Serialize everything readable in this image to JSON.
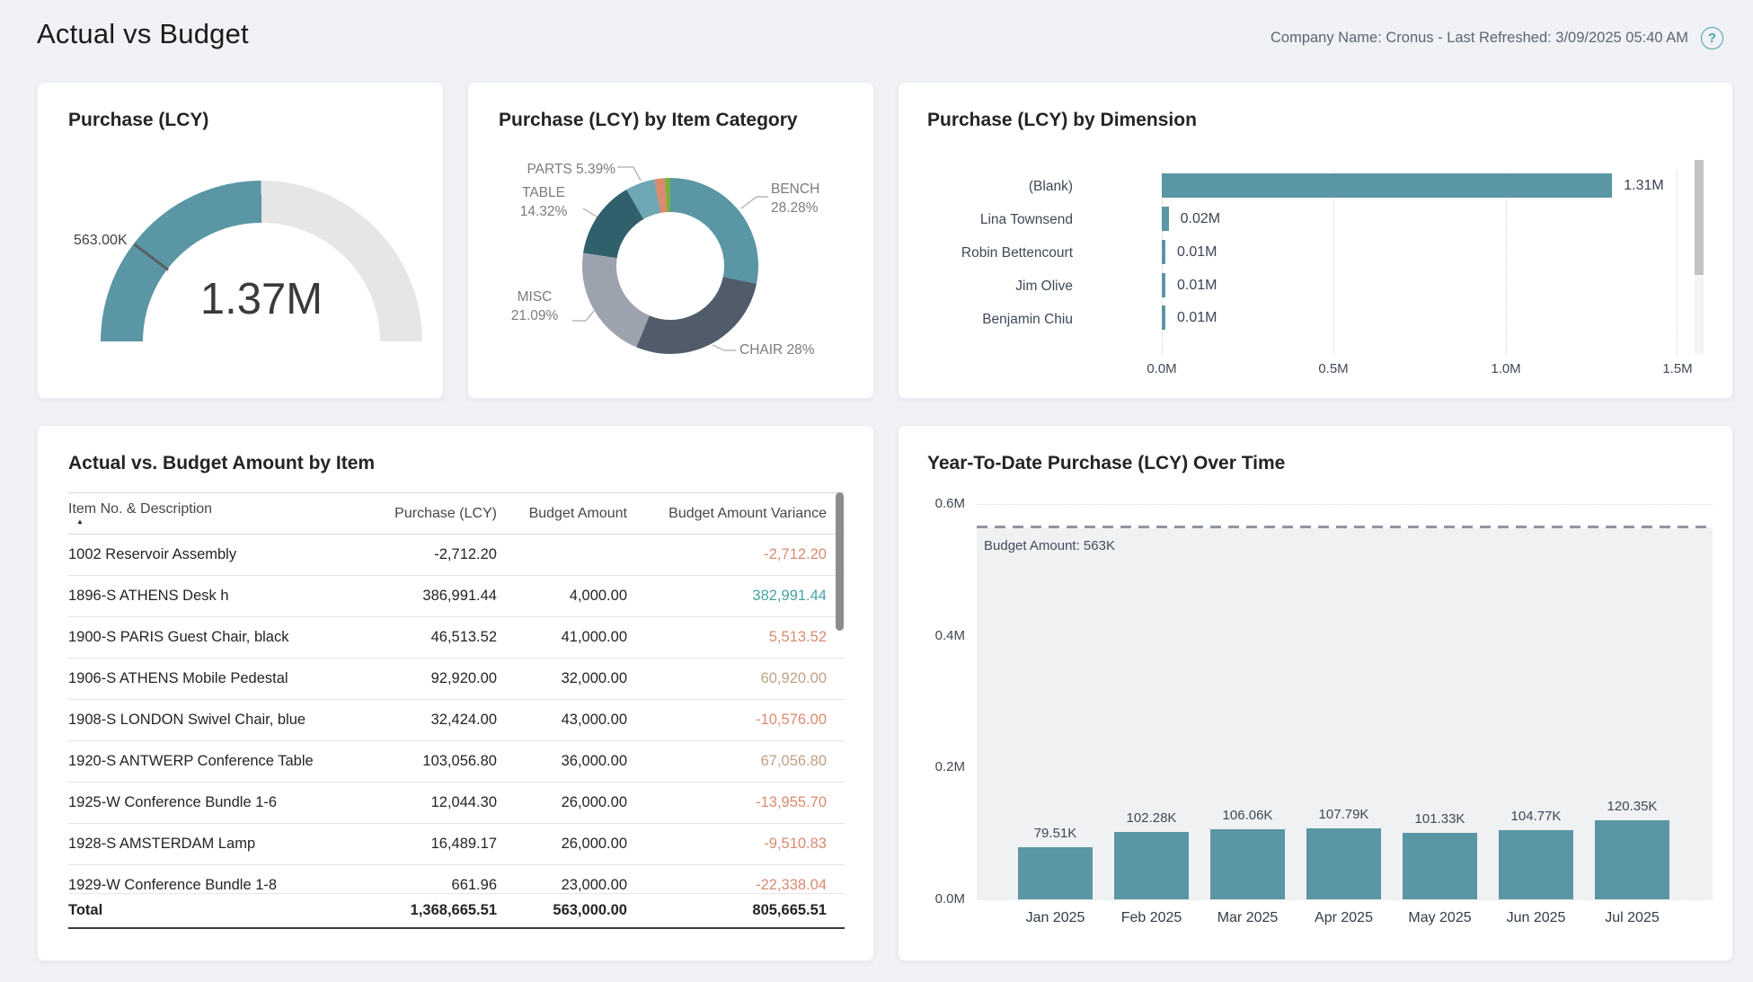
{
  "header": {
    "title": "Actual vs Budget",
    "company_info": "Company Name: Cronus - Last Refreshed: 3/09/2025 05:40 AM",
    "help_icon_glyph": "?"
  },
  "colors": {
    "teal": "#5A96A4",
    "gauge_track": "#E6E6E6",
    "salmon": "#D98B70",
    "tan": "#BFA183",
    "variance_teal": "#47A3A2",
    "page_bg": "#F0F2F6"
  },
  "chart_data": [
    {
      "type": "gauge",
      "title": "Purchase (LCY)",
      "value": 1368665.51,
      "value_label": "1.37M",
      "min": 0,
      "max": 2740000,
      "target": 563000,
      "target_label": "563.00K",
      "fill_color": "#5A96A4",
      "track_color": "#E6E6E6"
    },
    {
      "type": "pie",
      "title": "Purchase (LCY) by Item Category",
      "slices": [
        {
          "label": "BENCH",
          "pct": 28.28,
          "color": "#5A96A4",
          "callout1": "BENCH",
          "callout2": "28.28%"
        },
        {
          "label": "CHAIR",
          "pct": 28.0,
          "color": "#515C6B",
          "callout1": "CHAIR 28%"
        },
        {
          "label": "MISC",
          "pct": 21.09,
          "color": "#9DA3AE",
          "callout1": "MISC",
          "callout2": "21.09%"
        },
        {
          "label": "TABLE",
          "pct": 14.32,
          "color": "#2F606C",
          "callout1": "TABLE",
          "callout2": "14.32%"
        },
        {
          "label": "PARTS",
          "pct": 5.39,
          "color": "#6FA8B4",
          "callout1": "PARTS 5.39%"
        },
        {
          "label": "",
          "pct": 2.0,
          "color": "#D98B70"
        },
        {
          "label": "",
          "pct": 0.92,
          "color": "#76B041"
        }
      ]
    },
    {
      "type": "bar",
      "orientation": "horizontal",
      "title": "Purchase (LCY) by Dimension",
      "categories": [
        "(Blank)",
        "Lina Townsend",
        "Robin Bettencourt",
        "Jim Olive",
        "Benjamin Chiu"
      ],
      "values": [
        1310000,
        20000,
        10000,
        10000,
        10000
      ],
      "value_labels": [
        "1.31M",
        "0.02M",
        "0.01M",
        "0.01M",
        "0.01M"
      ],
      "x_ticks": [
        "0.0M",
        "0.5M",
        "1.0M",
        "1.5M"
      ],
      "xlim": [
        0,
        1500000
      ],
      "bar_color": "#5A96A4",
      "grid": "dotted-vertical"
    },
    {
      "type": "table",
      "title": "Actual vs. Budget Amount by Item",
      "columns": [
        "Item No. & Description",
        "Purchase (LCY)",
        "Budget Amount",
        "Budget Amount Variance"
      ],
      "sort": {
        "column": "Item No. & Description",
        "direction": "ascending"
      },
      "rows": [
        {
          "desc": "1002 Reservoir Assembly",
          "purchase": "-2,712.20",
          "budget": "",
          "variance": "-2,712.20",
          "variance_color": "#D98B70"
        },
        {
          "desc": "1896-S ATHENS Desk h",
          "purchase": "386,991.44",
          "budget": "4,000.00",
          "variance": "382,991.44",
          "variance_color": "#47A3A2"
        },
        {
          "desc": "1900-S PARIS Guest Chair, black",
          "purchase": "46,513.52",
          "budget": "41,000.00",
          "variance": "5,513.52",
          "variance_color": "#D98B70"
        },
        {
          "desc": "1906-S ATHENS Mobile Pedestal",
          "purchase": "92,920.00",
          "budget": "32,000.00",
          "variance": "60,920.00",
          "variance_color": "#BFA183"
        },
        {
          "desc": "1908-S LONDON Swivel Chair, blue",
          "purchase": "32,424.00",
          "budget": "43,000.00",
          "variance": "-10,576.00",
          "variance_color": "#D98B70"
        },
        {
          "desc": "1920-S ANTWERP Conference Table",
          "purchase": "103,056.80",
          "budget": "36,000.00",
          "variance": "67,056.80",
          "variance_color": "#BFA183"
        },
        {
          "desc": "1925-W Conference Bundle 1-6",
          "purchase": "12,044.30",
          "budget": "26,000.00",
          "variance": "-13,955.70",
          "variance_color": "#D98B70"
        },
        {
          "desc": "1928-S AMSTERDAM Lamp",
          "purchase": "16,489.17",
          "budget": "26,000.00",
          "variance": "-9,510.83",
          "variance_color": "#D98B70"
        },
        {
          "desc": "1929-W Conference Bundle 1-8",
          "purchase": "661.96",
          "budget": "23,000.00",
          "variance": "-22,338.04",
          "variance_color": "#D98B70"
        }
      ],
      "total": {
        "desc": "Total",
        "purchase": "1,368,665.51",
        "budget": "563,000.00",
        "variance": "805,665.51"
      }
    },
    {
      "type": "bar",
      "orientation": "vertical",
      "title": "Year-To-Date Purchase (LCY) Over Time",
      "categories": [
        "Jan 2025",
        "Feb 2025",
        "Mar 2025",
        "Apr 2025",
        "May 2025",
        "Jun 2025",
        "Jul 2025"
      ],
      "values": [
        79510,
        102280,
        106060,
        107790,
        101330,
        104770,
        120350
      ],
      "value_labels": [
        "79.51K",
        "102.28K",
        "106.06K",
        "107.79K",
        "101.33K",
        "104.77K",
        "120.35K"
      ],
      "y_ticks": [
        "0.0M",
        "0.2M",
        "0.4M",
        "0.6M"
      ],
      "ylim": [
        0,
        600000
      ],
      "budget_line": {
        "value": 563000,
        "label": "Budget Amount: 563K"
      },
      "bar_color": "#5A96A4",
      "grid": "dotted-horizontal"
    }
  ]
}
